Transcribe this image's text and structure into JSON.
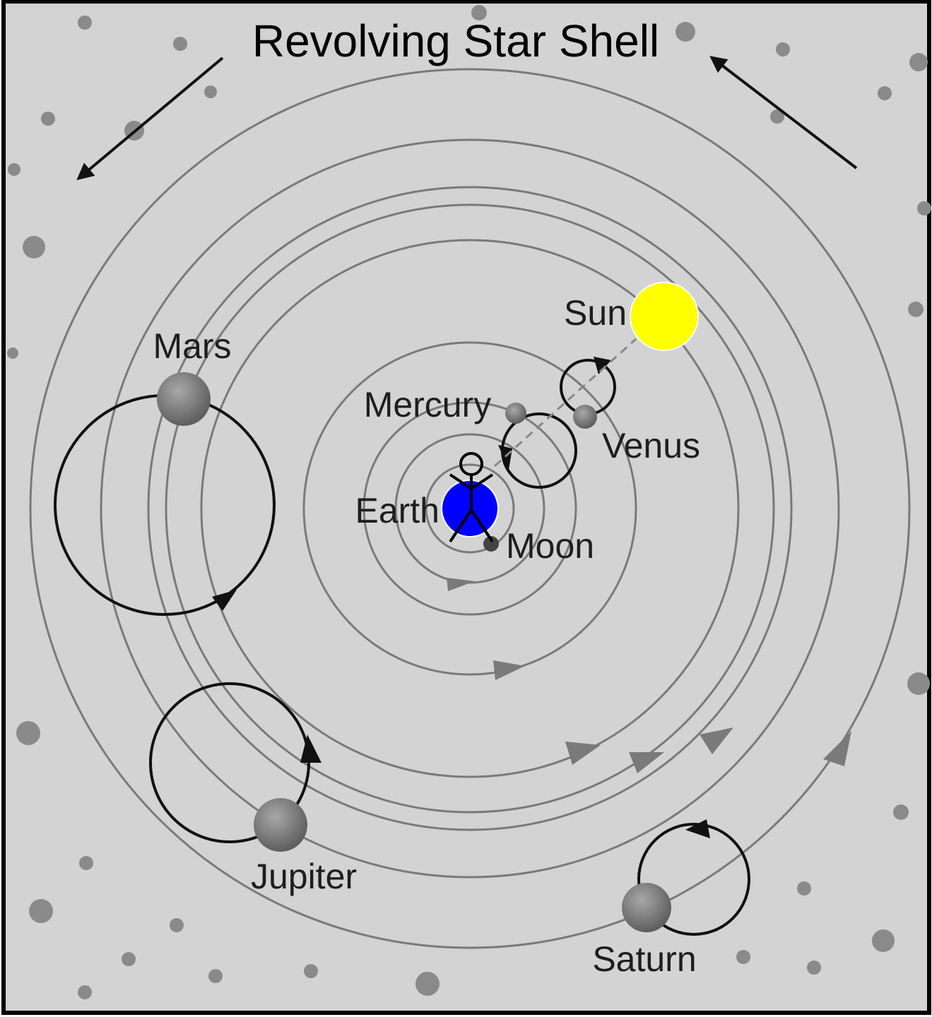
{
  "title": "Revolving Star Shell",
  "labels": {
    "sun": "Sun",
    "mars": "Mars",
    "mercury": "Mercury",
    "venus": "Venus",
    "earth": "Earth",
    "moon": "Moon",
    "jupiter": "Jupiter",
    "saturn": "Saturn"
  }
}
